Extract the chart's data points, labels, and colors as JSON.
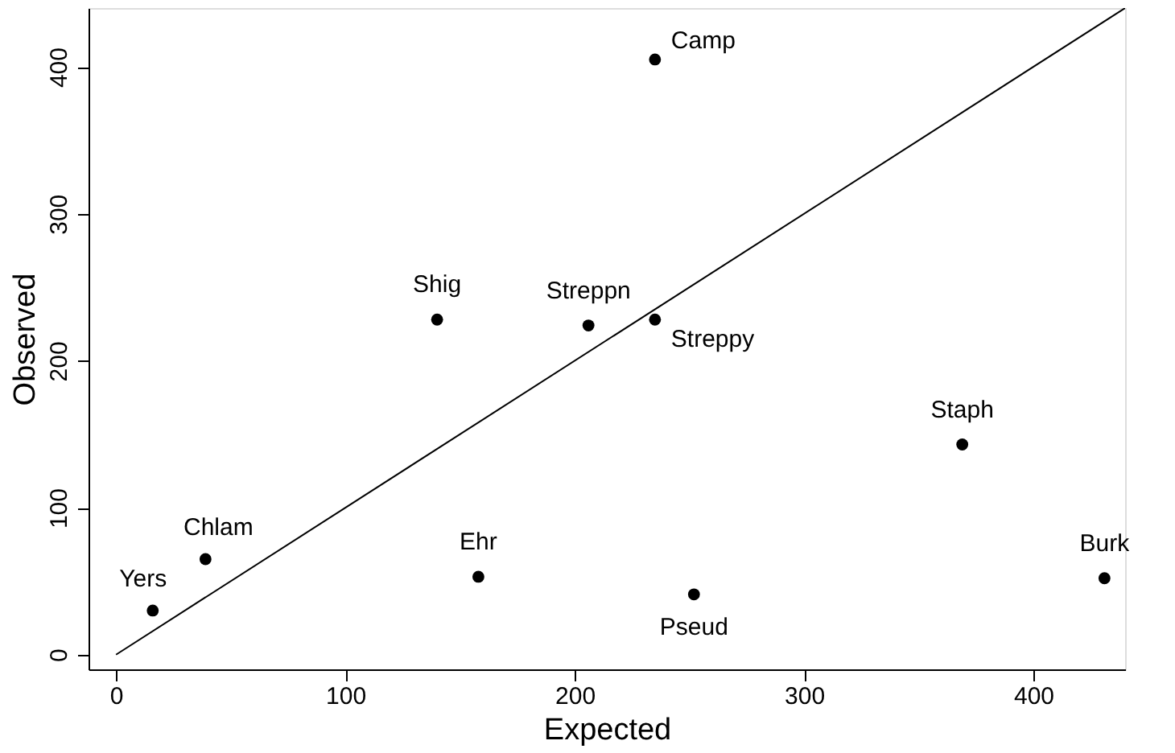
{
  "chart_data": {
    "type": "scatter",
    "xlabel": "Expected",
    "ylabel": "Observed",
    "xlim": [
      -12,
      440
    ],
    "ylim": [
      -10,
      440
    ],
    "xticks": [
      0,
      100,
      200,
      300,
      400
    ],
    "yticks": [
      0,
      100,
      200,
      300,
      400
    ],
    "grid": false,
    "series": [
      {
        "marker": "circle",
        "color": "#000000",
        "x": [
          235,
          140,
          206,
          235,
          369,
          39,
          16,
          158,
          431,
          252
        ],
        "values": [
          405,
          228,
          224,
          228,
          143,
          65,
          30,
          53,
          52,
          41
        ]
      },
      {
        "type": "line",
        "color": "#000000",
        "line_style": "solid",
        "x": [
          0,
          440
        ],
        "values": [
          0,
          440
        ]
      }
    ],
    "annotations": [
      {
        "text": "Camp",
        "x": 235,
        "y": 405
      },
      {
        "text": "Shig",
        "x": 140,
        "y": 228
      },
      {
        "text": "Streppn",
        "x": 206,
        "y": 224
      },
      {
        "text": "Streppy",
        "x": 235,
        "y": 228
      },
      {
        "text": "Staph",
        "x": 369,
        "y": 143
      },
      {
        "text": "Chlam",
        "x": 39,
        "y": 65
      },
      {
        "text": "Yers",
        "x": 16,
        "y": 30
      },
      {
        "text": "Ehr",
        "x": 158,
        "y": 53
      },
      {
        "text": "Burk",
        "x": 431,
        "y": 52
      },
      {
        "text": "Pseud",
        "x": 252,
        "y": 41
      }
    ]
  }
}
